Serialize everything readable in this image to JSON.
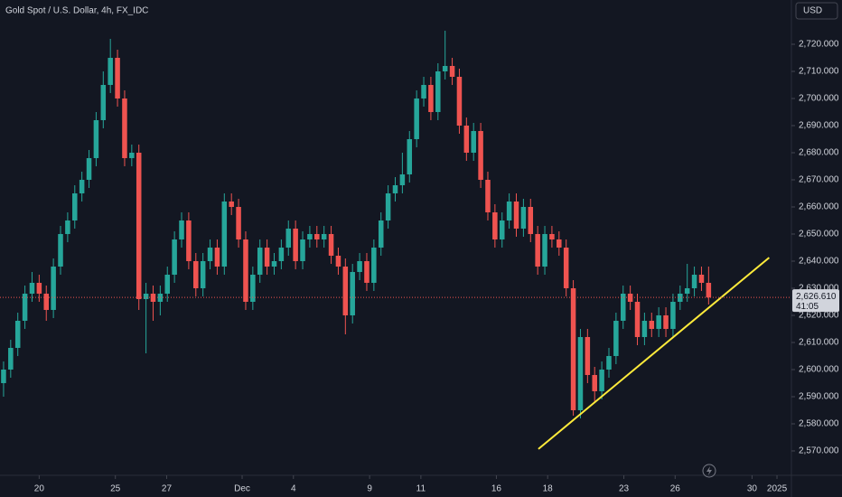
{
  "chart_data": {
    "type": "candlestick",
    "title": "Gold Spot / U.S. Dollar, 4h, FX_IDC",
    "currency": "USD",
    "up_color": "#26a69a",
    "down_color": "#ef5350",
    "open": [
      2595,
      2600,
      2608,
      2618,
      2628,
      2632,
      2628,
      2622,
      2638,
      2650,
      2655,
      2665,
      2670,
      2678,
      2692,
      2705,
      2715,
      2700,
      2678,
      2680,
      2626,
      2628,
      2625,
      2628,
      2635,
      2648,
      2655,
      2640,
      2630,
      2640,
      2645,
      2638,
      2662,
      2660,
      2648,
      2625,
      2635,
      2645,
      2638,
      2640,
      2645,
      2652,
      2640,
      2648,
      2650,
      2648,
      2650,
      2642,
      2638,
      2620,
      2636,
      2640,
      2632,
      2645,
      2655,
      2665,
      2668,
      2672,
      2685,
      2700,
      2705,
      2695,
      2710,
      2712,
      2708,
      2690,
      2680,
      2688,
      2670,
      2658,
      2648,
      2655,
      2662,
      2652,
      2660,
      2650,
      2638,
      2650,
      2648,
      2645,
      2630,
      2585,
      2612,
      2598,
      2592,
      2600,
      2605,
      2618,
      2628,
      2625,
      2612,
      2618,
      2615,
      2620,
      2615,
      2625,
      2628,
      2630,
      2635,
      2632
    ],
    "high": [
      2603,
      2611,
      2621,
      2631,
      2636,
      2635,
      2631,
      2641,
      2653,
      2658,
      2668,
      2673,
      2681,
      2695,
      2710,
      2722,
      2718,
      2703,
      2683,
      2683,
      2632,
      2631,
      2631,
      2638,
      2651,
      2658,
      2658,
      2643,
      2643,
      2648,
      2648,
      2665,
      2665,
      2663,
      2651,
      2638,
      2648,
      2648,
      2643,
      2648,
      2655,
      2655,
      2651,
      2653,
      2653,
      2653,
      2653,
      2645,
      2641,
      2639,
      2643,
      2643,
      2648,
      2658,
      2668,
      2671,
      2680,
      2688,
      2703,
      2708,
      2708,
      2713,
      2725,
      2715,
      2711,
      2693,
      2691,
      2691,
      2673,
      2661,
      2658,
      2665,
      2665,
      2663,
      2663,
      2653,
      2653,
      2653,
      2651,
      2648,
      2633,
      2615,
      2615,
      2601,
      2603,
      2608,
      2621,
      2631,
      2631,
      2628,
      2621,
      2621,
      2623,
      2623,
      2628,
      2631,
      2639,
      2638,
      2638,
      2638
    ],
    "low": [
      2590,
      2597,
      2605,
      2615,
      2625,
      2625,
      2618,
      2619,
      2635,
      2647,
      2652,
      2662,
      2667,
      2675,
      2689,
      2702,
      2697,
      2675,
      2675,
      2622,
      2606,
      2618,
      2620,
      2625,
      2632,
      2645,
      2637,
      2627,
      2627,
      2637,
      2635,
      2635,
      2657,
      2645,
      2622,
      2622,
      2632,
      2635,
      2635,
      2637,
      2642,
      2637,
      2637,
      2645,
      2645,
      2645,
      2639,
      2635,
      2613,
      2617,
      2633,
      2629,
      2629,
      2642,
      2652,
      2662,
      2665,
      2669,
      2682,
      2697,
      2692,
      2692,
      2707,
      2705,
      2687,
      2677,
      2677,
      2667,
      2655,
      2645,
      2645,
      2652,
      2649,
      2649,
      2647,
      2635,
      2635,
      2645,
      2642,
      2627,
      2583,
      2582,
      2595,
      2588,
      2589,
      2597,
      2602,
      2615,
      2622,
      2609,
      2609,
      2612,
      2612,
      2612,
      2612,
      2622,
      2625,
      2627,
      2629,
      2624
    ],
    "close": [
      2600,
      2608,
      2618,
      2628,
      2632,
      2628,
      2622,
      2638,
      2650,
      2655,
      2665,
      2670,
      2678,
      2692,
      2705,
      2715,
      2700,
      2678,
      2680,
      2626,
      2628,
      2625,
      2628,
      2635,
      2648,
      2655,
      2640,
      2630,
      2640,
      2645,
      2638,
      2662,
      2660,
      2648,
      2625,
      2635,
      2645,
      2638,
      2640,
      2645,
      2652,
      2640,
      2648,
      2650,
      2648,
      2650,
      2642,
      2638,
      2620,
      2636,
      2640,
      2632,
      2645,
      2655,
      2665,
      2668,
      2672,
      2685,
      2700,
      2705,
      2695,
      2710,
      2712,
      2708,
      2690,
      2680,
      2688,
      2670,
      2658,
      2648,
      2655,
      2662,
      2652,
      2660,
      2650,
      2638,
      2650,
      2648,
      2645,
      2630,
      2585,
      2612,
      2598,
      2592,
      2600,
      2605,
      2618,
      2628,
      2625,
      2612,
      2618,
      2615,
      2620,
      2615,
      2625,
      2628,
      2630,
      2635,
      2632,
      2626.61
    ],
    "xlim": [
      -0.5,
      110.5
    ],
    "xticks": [
      {
        "value": 5,
        "label": "20"
      },
      {
        "value": 15.7,
        "label": "25"
      },
      {
        "value": 22.9,
        "label": "27"
      },
      {
        "value": 33.5,
        "label": "Dec"
      },
      {
        "value": 40.7,
        "label": "4"
      },
      {
        "value": 51.4,
        "label": "9"
      },
      {
        "value": 58.6,
        "label": "11"
      },
      {
        "value": 69.2,
        "label": "16"
      },
      {
        "value": 76.4,
        "label": "18"
      },
      {
        "value": 87.1,
        "label": "23"
      },
      {
        "value": 94.3,
        "label": "26"
      },
      {
        "value": 105.1,
        "label": "30"
      },
      {
        "value": 108.6,
        "label": "2025"
      }
    ],
    "ylim": [
      2561.33,
      2736.33
    ],
    "yticks": [
      {
        "value": 2570,
        "label": "2,570.000"
      },
      {
        "value": 2580,
        "label": "2,580.000"
      },
      {
        "value": 2590,
        "label": "2,590.000"
      },
      {
        "value": 2600,
        "label": "2,600.000"
      },
      {
        "value": 2610,
        "label": "2,610.000"
      },
      {
        "value": 2620,
        "label": "2,620.000"
      },
      {
        "value": 2630,
        "label": "2,630.000"
      },
      {
        "value": 2640,
        "label": "2,640.000"
      },
      {
        "value": 2650,
        "label": "2,650.000"
      },
      {
        "value": 2660,
        "label": "2,660.000"
      },
      {
        "value": 2670,
        "label": "2,670.000"
      },
      {
        "value": 2680,
        "label": "2,680.000"
      },
      {
        "value": 2690,
        "label": "2,690.000"
      },
      {
        "value": 2700,
        "label": "2,700.000"
      },
      {
        "value": 2710,
        "label": "2,710.000"
      },
      {
        "value": 2720,
        "label": "2,720.000"
      }
    ],
    "last_price": {
      "value": 2626.61,
      "label": "2,626.610"
    },
    "countdown": "41:05",
    "trendline": {
      "x": [
        75.1,
        107.5
      ],
      "y": [
        2570.7,
        2641.3
      ],
      "color": "#ffeb3b"
    }
  }
}
